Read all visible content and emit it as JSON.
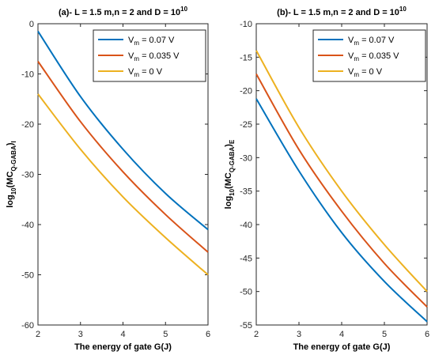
{
  "chart_data": [
    {
      "type": "line",
      "title": "(a)- L = 1.5 m,n = 2 and D = 10",
      "title_sup": "10",
      "xlabel": "The energy of gate G(J)",
      "ylabel": {
        "prefix": "log",
        "log_sub": "10",
        "mid": "(MC",
        "sub": "Q-GABA",
        "end": ")",
        "end_sub": "I"
      },
      "xlim": [
        2,
        6
      ],
      "ylim": [
        -60,
        0
      ],
      "xticks": [
        "2",
        "3",
        "4",
        "5",
        "6"
      ],
      "yticks": [
        "0",
        "-10",
        "-20",
        "-30",
        "-40",
        "-50",
        "-60"
      ],
      "grid": false,
      "legend_position": "top-right",
      "series": [
        {
          "name": "V_m = 0.07 V",
          "legend": {
            "base": "V",
            "sub": "m",
            "rest": " = 0.07 V"
          },
          "color": "#0072bd",
          "x": [
            2,
            3,
            4,
            5,
            6
          ],
          "values": [
            -1.5,
            -14.5,
            -25.0,
            -33.8,
            -41.0
          ]
        },
        {
          "name": "V_m = 0.035 V",
          "legend": {
            "base": "V",
            "sub": "m",
            "rest": " = 0.035 V"
          },
          "color": "#d95319",
          "x": [
            2,
            3,
            4,
            5,
            6
          ],
          "values": [
            -7.5,
            -19.5,
            -29.5,
            -38.0,
            -45.5
          ]
        },
        {
          "name": "V_m = 0 V",
          "legend": {
            "base": "V",
            "sub": "m",
            "rest": " = 0 V"
          },
          "color": "#edb120",
          "x": [
            2,
            3,
            4,
            5,
            6
          ],
          "values": [
            -14.0,
            -25.0,
            -34.5,
            -42.6,
            -50.0
          ]
        }
      ]
    },
    {
      "type": "line",
      "title": "(b)- L = 1.5 m,n = 2 and D = 10",
      "title_sup": "10",
      "xlabel": "The energy of gate G(J)",
      "ylabel": {
        "prefix": "log",
        "log_sub": "10",
        "mid": "(MC",
        "sub": "Q-GABA",
        "end": ")",
        "end_sub": "E"
      },
      "xlim": [
        2,
        6
      ],
      "ylim": [
        -55,
        -10
      ],
      "xticks": [
        "2",
        "3",
        "4",
        "5",
        "6"
      ],
      "yticks": [
        "-10",
        "-15",
        "-20",
        "-25",
        "-30",
        "-35",
        "-40",
        "-45",
        "-50",
        "-55"
      ],
      "grid": false,
      "legend_position": "top-right",
      "series": [
        {
          "name": "V_m = 0.07 V",
          "legend": {
            "base": "V",
            "sub": "m",
            "rest": " = 0.07 V"
          },
          "color": "#0072bd",
          "x": [
            2,
            3,
            4,
            5,
            6
          ],
          "values": [
            -21.2,
            -32.0,
            -41.2,
            -48.5,
            -54.5
          ]
        },
        {
          "name": "V_m = 0.035 V",
          "legend": {
            "base": "V",
            "sub": "m",
            "rest": " = 0.035 V"
          },
          "color": "#d95319",
          "x": [
            2,
            3,
            4,
            5,
            6
          ],
          "values": [
            -17.5,
            -28.8,
            -38.0,
            -45.8,
            -52.3
          ]
        },
        {
          "name": "V_m = 0 V",
          "legend": {
            "base": "V",
            "sub": "m",
            "rest": " = 0 V"
          },
          "color": "#edb120",
          "x": [
            2,
            3,
            4,
            5,
            6
          ],
          "values": [
            -14.0,
            -25.5,
            -35.0,
            -43.0,
            -50.0
          ]
        }
      ]
    }
  ]
}
